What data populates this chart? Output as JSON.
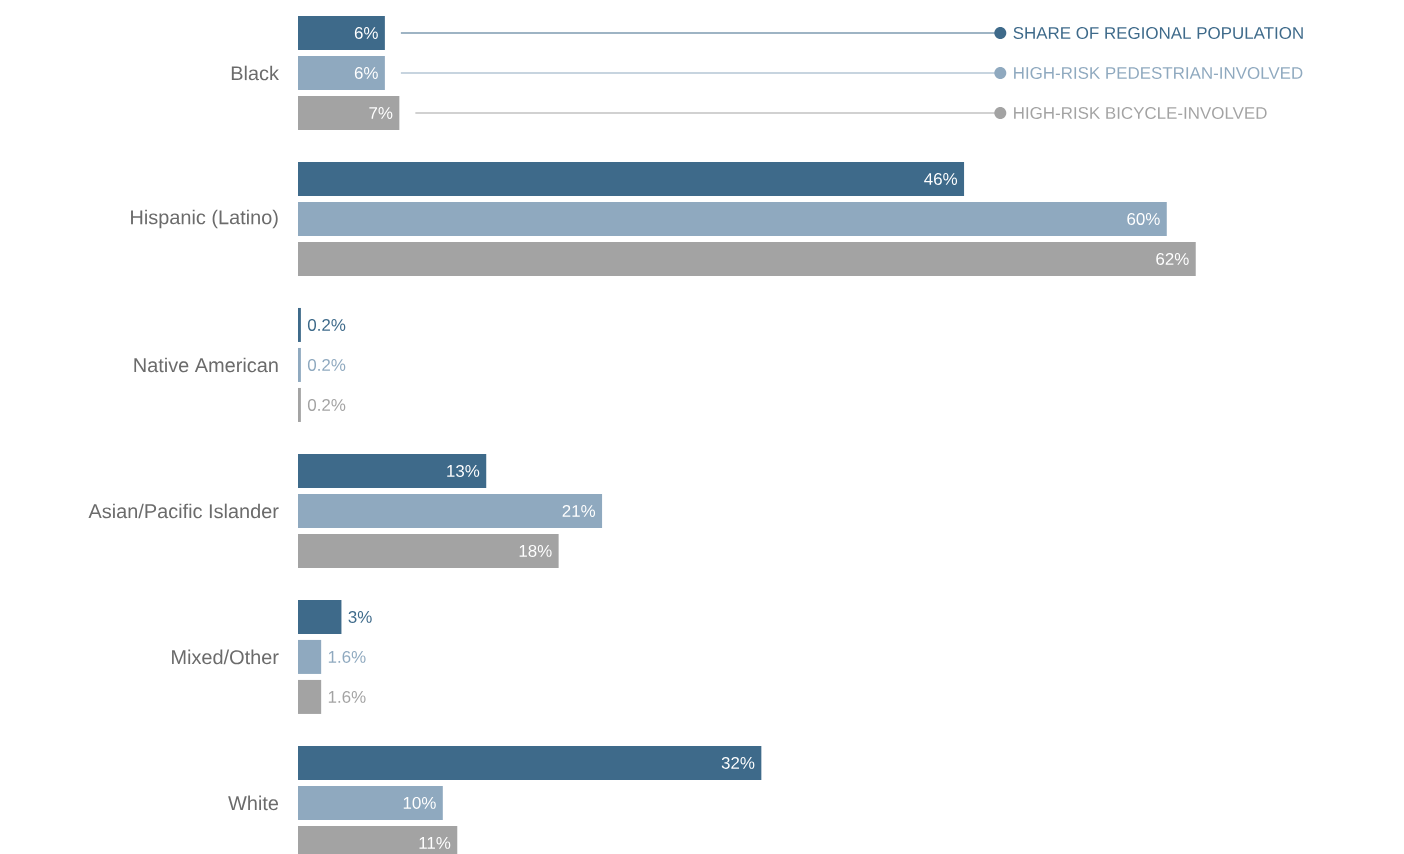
{
  "chart_data": {
    "type": "bar",
    "orientation": "horizontal",
    "legend": "top right",
    "categories": [
      "Black",
      "Hispanic (Latino)",
      "Native American",
      "Asian/Pacific Islander",
      "Mixed/Other",
      "White"
    ],
    "series": [
      {
        "name": "SHARE OF REGIONAL POPULATION",
        "color": "#3e6a8a",
        "values": [
          6,
          46,
          0.2,
          13,
          3,
          32
        ],
        "value_labels": [
          "6%",
          "46%",
          "0.2%",
          "13%",
          "3%",
          "32%"
        ]
      },
      {
        "name": "HIGH-RISK PEDESTRIAN-INVOLVED",
        "color": "#8fa9bf",
        "values": [
          6,
          60,
          0.2,
          21,
          1.6,
          10
        ],
        "value_labels": [
          "6%",
          "60%",
          "0.2%",
          "21%",
          "1.6%",
          "10%"
        ]
      },
      {
        "name": "HIGH-RISK BICYCLE-INVOLVED",
        "color": "#a3a3a3",
        "values": [
          7,
          62,
          0.2,
          18,
          1.6,
          11
        ],
        "value_labels": [
          "7%",
          "62%",
          "0.2%",
          "18%",
          "1.6%",
          "11%"
        ]
      }
    ]
  }
}
